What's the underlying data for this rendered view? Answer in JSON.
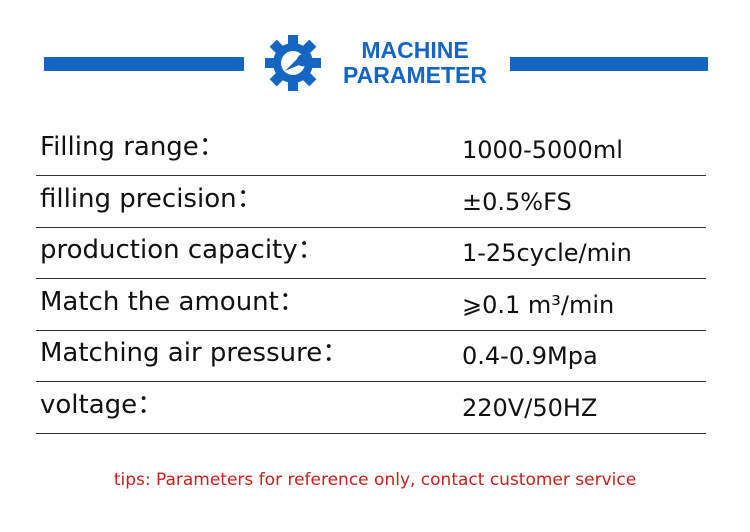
{
  "header": {
    "title_line1": "MACHINE",
    "title_line2": "PARAMETER"
  },
  "table": {
    "rows": [
      [
        "Filling range：",
        "1000-5000ml"
      ],
      [
        "filling precision：",
        "±0.5%FS"
      ],
      [
        "production capacity：",
        "1-25cycle/min"
      ],
      [
        "Match the amount：",
        "⩾0.1 m³/min"
      ],
      [
        "Matching air pressure：",
        "0.4-0.9Mpa"
      ],
      [
        "voltage：",
        "220V/50HZ"
      ]
    ]
  },
  "footer": {
    "tips": "tips: Parameters for reference only, contact customer service"
  }
}
